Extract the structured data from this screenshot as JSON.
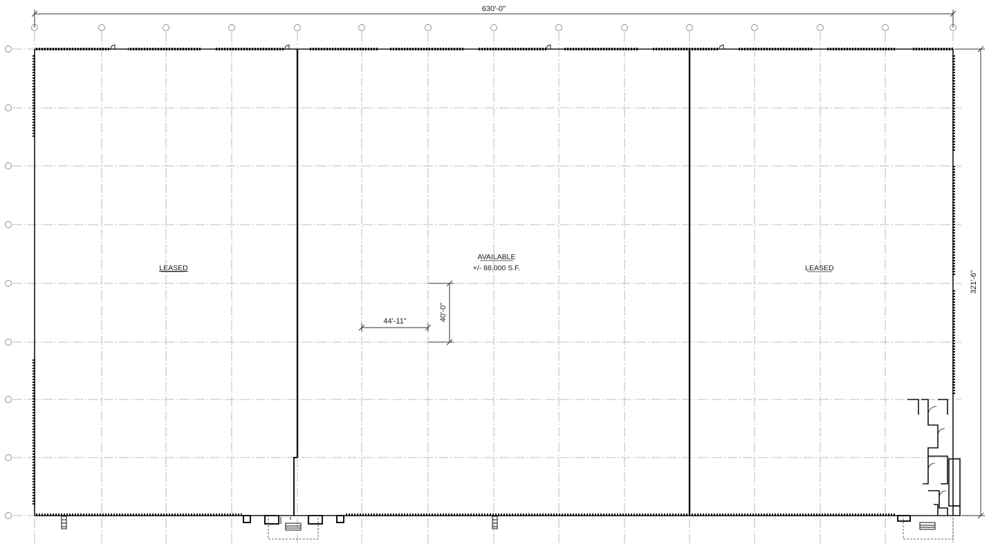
{
  "colors": {
    "wall": "#111111",
    "grid": "#a8a8a8",
    "dim": "#333333",
    "bubble": "#888888"
  },
  "icons": [
    "grid-bubble-icon",
    "door-swing-icon",
    "stair-icon"
  ],
  "dimensions": {
    "overall_width": "630'-0\"",
    "overall_depth": "321'-6\"",
    "bay_width": "44'-11\"",
    "bay_depth": "40'-0\""
  },
  "spaces": {
    "left": {
      "label": "LEASED"
    },
    "center": {
      "label": "AVAILABLE",
      "area": "+/- 88,000 S.F."
    },
    "right": {
      "label": "LEASED"
    }
  }
}
